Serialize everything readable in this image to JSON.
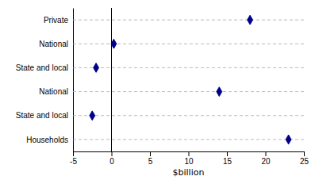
{
  "chart_data": {
    "type": "dot",
    "categories": [
      "Private",
      "National",
      "State and local",
      "National",
      "State and local",
      "Households"
    ],
    "values": [
      18.0,
      0.3,
      -2.0,
      14.0,
      -2.5,
      23.0
    ],
    "color": "#00008B",
    "marker": "diamond",
    "line_style": "dashed",
    "xlabel": "$billion",
    "xlim": [
      -5,
      25
    ],
    "xticks": [
      -5,
      0,
      5,
      10,
      15,
      20,
      25
    ]
  }
}
